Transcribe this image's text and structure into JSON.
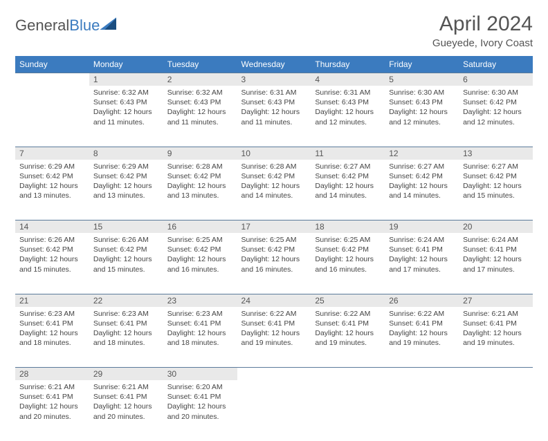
{
  "brand": {
    "part1": "General",
    "part2": "Blue"
  },
  "title": "April 2024",
  "location": "Gueyede, Ivory Coast",
  "colors": {
    "header_bg": "#3b7bbf",
    "header_text": "#ffffff",
    "daynum_bg": "#e9e9e9",
    "row_sep": "#5a7a9a",
    "text": "#444444",
    "title_text": "#545454"
  },
  "typography": {
    "title_fontsize": 30,
    "location_fontsize": 15,
    "weekday_fontsize": 12,
    "cell_fontsize": 10.5
  },
  "weekdays": [
    "Sunday",
    "Monday",
    "Tuesday",
    "Wednesday",
    "Thursday",
    "Friday",
    "Saturday"
  ],
  "weeks": [
    [
      null,
      {
        "d": "1",
        "sr": "6:32 AM",
        "ss": "6:43 PM",
        "dl": "12 hours and 11 minutes."
      },
      {
        "d": "2",
        "sr": "6:32 AM",
        "ss": "6:43 PM",
        "dl": "12 hours and 11 minutes."
      },
      {
        "d": "3",
        "sr": "6:31 AM",
        "ss": "6:43 PM",
        "dl": "12 hours and 11 minutes."
      },
      {
        "d": "4",
        "sr": "6:31 AM",
        "ss": "6:43 PM",
        "dl": "12 hours and 12 minutes."
      },
      {
        "d": "5",
        "sr": "6:30 AM",
        "ss": "6:43 PM",
        "dl": "12 hours and 12 minutes."
      },
      {
        "d": "6",
        "sr": "6:30 AM",
        "ss": "6:42 PM",
        "dl": "12 hours and 12 minutes."
      }
    ],
    [
      {
        "d": "7",
        "sr": "6:29 AM",
        "ss": "6:42 PM",
        "dl": "12 hours and 13 minutes."
      },
      {
        "d": "8",
        "sr": "6:29 AM",
        "ss": "6:42 PM",
        "dl": "12 hours and 13 minutes."
      },
      {
        "d": "9",
        "sr": "6:28 AM",
        "ss": "6:42 PM",
        "dl": "12 hours and 13 minutes."
      },
      {
        "d": "10",
        "sr": "6:28 AM",
        "ss": "6:42 PM",
        "dl": "12 hours and 14 minutes."
      },
      {
        "d": "11",
        "sr": "6:27 AM",
        "ss": "6:42 PM",
        "dl": "12 hours and 14 minutes."
      },
      {
        "d": "12",
        "sr": "6:27 AM",
        "ss": "6:42 PM",
        "dl": "12 hours and 14 minutes."
      },
      {
        "d": "13",
        "sr": "6:27 AM",
        "ss": "6:42 PM",
        "dl": "12 hours and 15 minutes."
      }
    ],
    [
      {
        "d": "14",
        "sr": "6:26 AM",
        "ss": "6:42 PM",
        "dl": "12 hours and 15 minutes."
      },
      {
        "d": "15",
        "sr": "6:26 AM",
        "ss": "6:42 PM",
        "dl": "12 hours and 15 minutes."
      },
      {
        "d": "16",
        "sr": "6:25 AM",
        "ss": "6:42 PM",
        "dl": "12 hours and 16 minutes."
      },
      {
        "d": "17",
        "sr": "6:25 AM",
        "ss": "6:42 PM",
        "dl": "12 hours and 16 minutes."
      },
      {
        "d": "18",
        "sr": "6:25 AM",
        "ss": "6:42 PM",
        "dl": "12 hours and 16 minutes."
      },
      {
        "d": "19",
        "sr": "6:24 AM",
        "ss": "6:41 PM",
        "dl": "12 hours and 17 minutes."
      },
      {
        "d": "20",
        "sr": "6:24 AM",
        "ss": "6:41 PM",
        "dl": "12 hours and 17 minutes."
      }
    ],
    [
      {
        "d": "21",
        "sr": "6:23 AM",
        "ss": "6:41 PM",
        "dl": "12 hours and 18 minutes."
      },
      {
        "d": "22",
        "sr": "6:23 AM",
        "ss": "6:41 PM",
        "dl": "12 hours and 18 minutes."
      },
      {
        "d": "23",
        "sr": "6:23 AM",
        "ss": "6:41 PM",
        "dl": "12 hours and 18 minutes."
      },
      {
        "d": "24",
        "sr": "6:22 AM",
        "ss": "6:41 PM",
        "dl": "12 hours and 19 minutes."
      },
      {
        "d": "25",
        "sr": "6:22 AM",
        "ss": "6:41 PM",
        "dl": "12 hours and 19 minutes."
      },
      {
        "d": "26",
        "sr": "6:22 AM",
        "ss": "6:41 PM",
        "dl": "12 hours and 19 minutes."
      },
      {
        "d": "27",
        "sr": "6:21 AM",
        "ss": "6:41 PM",
        "dl": "12 hours and 19 minutes."
      }
    ],
    [
      {
        "d": "28",
        "sr": "6:21 AM",
        "ss": "6:41 PM",
        "dl": "12 hours and 20 minutes."
      },
      {
        "d": "29",
        "sr": "6:21 AM",
        "ss": "6:41 PM",
        "dl": "12 hours and 20 minutes."
      },
      {
        "d": "30",
        "sr": "6:20 AM",
        "ss": "6:41 PM",
        "dl": "12 hours and 20 minutes."
      },
      null,
      null,
      null,
      null
    ]
  ],
  "labels": {
    "sunrise": "Sunrise:",
    "sunset": "Sunset:",
    "daylight": "Daylight:"
  }
}
